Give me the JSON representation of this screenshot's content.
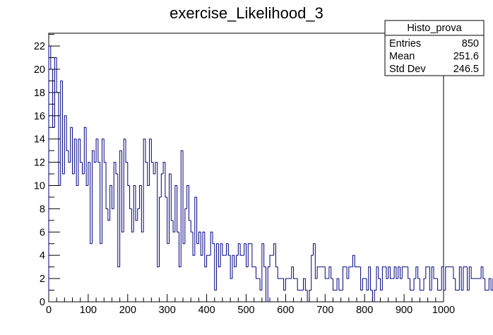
{
  "chart_data": {
    "type": "histogram",
    "title": "exercise_Likelihood_3",
    "xlabel": "",
    "ylabel": "",
    "xlim": [
      0,
      1000
    ],
    "ylim": [
      0,
      23.1
    ],
    "bin_width": 5,
    "x_ticks": [
      "0",
      "100",
      "200",
      "300",
      "400",
      "500",
      "600",
      "700",
      "800",
      "900",
      "1000"
    ],
    "y_ticks": [
      "0",
      "2",
      "4",
      "6",
      "8",
      "10",
      "12",
      "14",
      "16",
      "18",
      "20",
      "22"
    ],
    "line_color": "#000080",
    "grid": false,
    "stats_box": {
      "title": "Histo_prova",
      "rows": [
        {
          "label": "Entries",
          "value": "850"
        },
        {
          "label": "Mean",
          "value": "251.6"
        },
        {
          "label": "Std Dev",
          "value": "246.5"
        }
      ]
    },
    "values": [
      22,
      20,
      15,
      21,
      18,
      10,
      19,
      11,
      16,
      13,
      12,
      15,
      11,
      14,
      10,
      14,
      12,
      11,
      15,
      10,
      12,
      5,
      13,
      12,
      14,
      12,
      5,
      14,
      12,
      8,
      7,
      10,
      8,
      12,
      11,
      3,
      13,
      6,
      14,
      12,
      10,
      8,
      6,
      10,
      7,
      8,
      10,
      6,
      14,
      12,
      10,
      14,
      12,
      11,
      12,
      3,
      9,
      11,
      12,
      9,
      5,
      11,
      7,
      6,
      10,
      6,
      3,
      13,
      5,
      8,
      10,
      7,
      6,
      4,
      9,
      5,
      6,
      4,
      6,
      3,
      4,
      4,
      6,
      5,
      1,
      5,
      3,
      5,
      4,
      4,
      5,
      4,
      2,
      4,
      3,
      4,
      5,
      4,
      4,
      5,
      3,
      5,
      5,
      3,
      3,
      2,
      2,
      1,
      5,
      3,
      0,
      3,
      4,
      4,
      5,
      3,
      2,
      2,
      2,
      1,
      2,
      2,
      2,
      3,
      2,
      2,
      1,
      1,
      1,
      2,
      1,
      0,
      1,
      4,
      5,
      2,
      3,
      3,
      3,
      3,
      2,
      2,
      3,
      2,
      1,
      1,
      2,
      1,
      1,
      3,
      3,
      2,
      3,
      3,
      4,
      3,
      3,
      3,
      1,
      2,
      2,
      1,
      3,
      1,
      0,
      1,
      3,
      2,
      1,
      3,
      3,
      2,
      3,
      2,
      2,
      3,
      2,
      3,
      2,
      3,
      3,
      3,
      2,
      1,
      1,
      2,
      3,
      2,
      1,
      1,
      2,
      3,
      3,
      1,
      3,
      2,
      2,
      1,
      1,
      3,
      1,
      3,
      3,
      3,
      3,
      2,
      1,
      1,
      3,
      1,
      3,
      3,
      1,
      3,
      2,
      2,
      2,
      2,
      2,
      3,
      2,
      1,
      1,
      2,
      1,
      2,
      2,
      2,
      2,
      2,
      0,
      1,
      1,
      1,
      3,
      0,
      0,
      1,
      1,
      1,
      0,
      2,
      0,
      0,
      1,
      2,
      2,
      0,
      1,
      1,
      1,
      1,
      0,
      1,
      1,
      0,
      1,
      3,
      1,
      2,
      0,
      1,
      1,
      3,
      2,
      3,
      1,
      1,
      1,
      1,
      0,
      0,
      2,
      1,
      1,
      2,
      0,
      0,
      1,
      1,
      0,
      0,
      1,
      0,
      1,
      1,
      1,
      1,
      1,
      0,
      1,
      1,
      1,
      1,
      1,
      1,
      0,
      1,
      0,
      1,
      1,
      0,
      1,
      1,
      1,
      1,
      0,
      1,
      0,
      1,
      0,
      0,
      0,
      0,
      0,
      0,
      0,
      0,
      1,
      0,
      0,
      0,
      0,
      0,
      0,
      0,
      0,
      0,
      0,
      0,
      0,
      0,
      0,
      0,
      0,
      0,
      0,
      0,
      0,
      0,
      0,
      0,
      0,
      0,
      0,
      0,
      0,
      0,
      0,
      0,
      0,
      0,
      0,
      0,
      0,
      0,
      0,
      0,
      0,
      0,
      0,
      0,
      0,
      0,
      0,
      0,
      0,
      0,
      0,
      0,
      0,
      0,
      0,
      0,
      0,
      0,
      0,
      0,
      0,
      0,
      0,
      0,
      0,
      0,
      0,
      0,
      0,
      0,
      0,
      0,
      0,
      0,
      0,
      0,
      0,
      0,
      0,
      0,
      0,
      0
    ]
  }
}
